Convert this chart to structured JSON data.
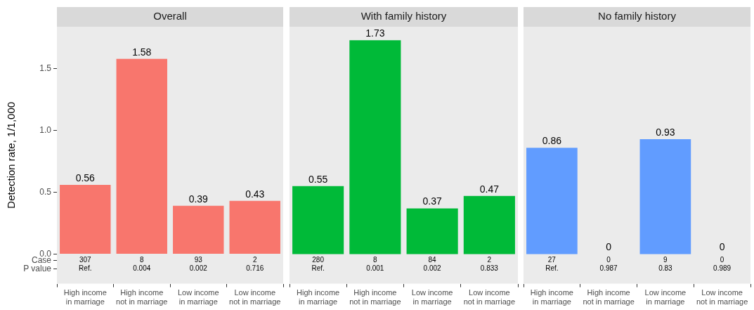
{
  "chart_data": [
    {
      "type": "bar",
      "title": "Overall",
      "ylabel": "Detection rate, 1/1,000",
      "categories": [
        "High income\nin marriage",
        "High income\nnot in marriage",
        "Low income\nin marriage",
        "Low income\nnot in marriage"
      ],
      "values": [
        0.56,
        1.58,
        0.39,
        0.43
      ],
      "color": "#f8766d",
      "ylim": [
        -0.24,
        1.84
      ],
      "yticks": [
        {
          "value": -0.12,
          "label": "P value"
        },
        {
          "value": -0.05,
          "label": "Case"
        },
        {
          "value": 0,
          "label": "0.0"
        },
        {
          "value": 0.5,
          "label": "0.5"
        },
        {
          "value": 1,
          "label": "1.0"
        },
        1.5
      ],
      "grid": false,
      "data_labels": true,
      "annotations": [
        "307",
        "8",
        "93",
        "2",
        "Ref.",
        "0.004",
        "0.002",
        "0.716"
      ]
    },
    {
      "type": "bar",
      "title": "With family history",
      "categories": [
        "High income\nin marriage",
        "High income\nnot in marriage",
        "Low income\nin marriage",
        "Low income\nnot in marriage"
      ],
      "values": [
        0.55,
        1.73,
        0.37,
        0.47
      ],
      "color": "#00ba38",
      "ylim": [
        -0.24,
        1.84
      ],
      "grid": false,
      "data_labels": true,
      "tick_labels": "x",
      "annotations": [
        "280",
        "8",
        "84",
        "2",
        "Ref.",
        "0.001",
        "0.002",
        "0.833"
      ]
    },
    {
      "type": "bar",
      "title": "No family history",
      "categories": [
        "High income\nin marriage",
        "High income\nnot in marriage",
        "Low income\nin marriage",
        "Low income\nnot in marriage"
      ],
      "values": [
        0.86,
        0,
        0.93,
        0
      ],
      "color": "#619cff",
      "ylim": [
        -0.24,
        1.84
      ],
      "grid": false,
      "data_labels": true,
      "tick_labels": "x",
      "annotations": [
        "27",
        "0",
        "9",
        "0",
        "Ref.",
        "0.987",
        "0.83",
        "0.989"
      ]
    }
  ]
}
